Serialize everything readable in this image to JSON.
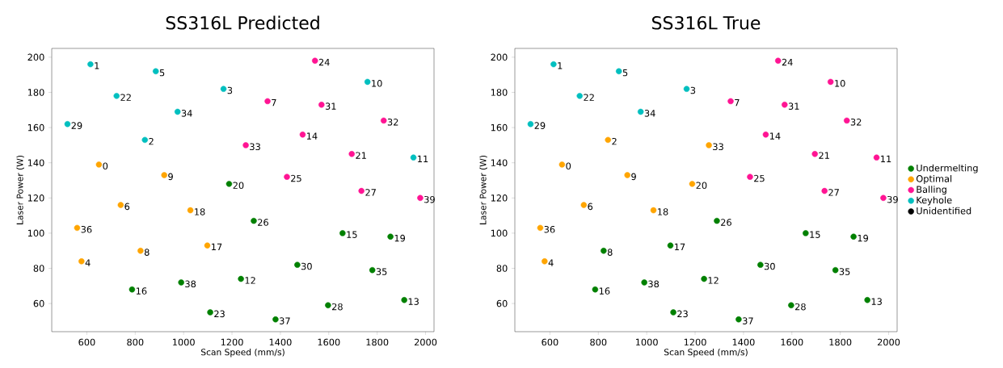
{
  "chart_data": [
    {
      "type": "scatter",
      "title": "SS316L Predicted",
      "xlabel": "Scan Speed (mm/s)",
      "ylabel": "Laser Power (W)",
      "xlim": [
        455,
        2035
      ],
      "ylim": [
        44,
        205
      ],
      "xticks": [
        600,
        800,
        1000,
        1200,
        1400,
        1600,
        1800,
        2000
      ],
      "yticks": [
        60,
        80,
        100,
        120,
        140,
        160,
        180,
        200
      ],
      "legend": false,
      "series": [
        {
          "color": "#008000",
          "x": [
            1188,
            1290,
            1657,
            1855,
            1470,
            1780,
            787,
            990,
            1237,
            1912,
            1597,
            1110,
            1380
          ],
          "values": [
            128,
            107,
            100,
            98,
            82,
            79,
            68,
            72,
            74,
            62,
            59,
            55,
            51
          ]
        },
        {
          "color": "#ffa500",
          "x": [
            650,
            920,
            740,
            1028,
            560,
            822,
            1098,
            578
          ],
          "values": [
            139,
            133,
            116,
            113,
            103,
            90,
            93,
            84
          ]
        },
        {
          "color": "#ff1493",
          "x": [
            1543,
            1347,
            1570,
            1827,
            1492,
            1257,
            1695,
            1427,
            1735,
            1978
          ],
          "values": [
            198,
            175,
            173,
            164,
            156,
            150,
            145,
            132,
            124,
            120
          ]
        },
        {
          "color": "#00bfbf",
          "x": [
            615,
            885,
            1165,
            723,
            975,
            520,
            840,
            1760,
            1950
          ],
          "values": [
            196,
            192,
            182,
            178,
            169,
            162,
            153,
            186,
            143
          ]
        }
      ],
      "annotations": [
        {
          "text": "0",
          "x": 650,
          "y": 139
        },
        {
          "text": "1",
          "x": 615,
          "y": 196
        },
        {
          "text": "2",
          "x": 840,
          "y": 153
        },
        {
          "text": "3",
          "x": 1165,
          "y": 182
        },
        {
          "text": "4",
          "x": 578,
          "y": 84
        },
        {
          "text": "5",
          "x": 885,
          "y": 192
        },
        {
          "text": "6",
          "x": 740,
          "y": 116
        },
        {
          "text": "7",
          "x": 1347,
          "y": 175
        },
        {
          "text": "8",
          "x": 822,
          "y": 90
        },
        {
          "text": "9",
          "x": 920,
          "y": 133
        },
        {
          "text": "10",
          "x": 1760,
          "y": 186
        },
        {
          "text": "11",
          "x": 1950,
          "y": 143
        },
        {
          "text": "12",
          "x": 1237,
          "y": 74
        },
        {
          "text": "13",
          "x": 1912,
          "y": 62
        },
        {
          "text": "14",
          "x": 1492,
          "y": 156
        },
        {
          "text": "15",
          "x": 1657,
          "y": 100
        },
        {
          "text": "16",
          "x": 787,
          "y": 68
        },
        {
          "text": "17",
          "x": 1098,
          "y": 93
        },
        {
          "text": "18",
          "x": 1028,
          "y": 113
        },
        {
          "text": "19",
          "x": 1855,
          "y": 98
        },
        {
          "text": "20",
          "x": 1188,
          "y": 128
        },
        {
          "text": "21",
          "x": 1695,
          "y": 145
        },
        {
          "text": "22",
          "x": 723,
          "y": 178
        },
        {
          "text": "23",
          "x": 1110,
          "y": 55
        },
        {
          "text": "24",
          "x": 1543,
          "y": 198
        },
        {
          "text": "25",
          "x": 1427,
          "y": 132
        },
        {
          "text": "26",
          "x": 1290,
          "y": 107
        },
        {
          "text": "27",
          "x": 1735,
          "y": 124
        },
        {
          "text": "28",
          "x": 1597,
          "y": 59
        },
        {
          "text": "29",
          "x": 520,
          "y": 162
        },
        {
          "text": "30",
          "x": 1470,
          "y": 82
        },
        {
          "text": "31",
          "x": 1570,
          "y": 173
        },
        {
          "text": "32",
          "x": 1827,
          "y": 164
        },
        {
          "text": "33",
          "x": 1257,
          "y": 150
        },
        {
          "text": "34",
          "x": 975,
          "y": 169
        },
        {
          "text": "35",
          "x": 1780,
          "y": 79
        },
        {
          "text": "36",
          "x": 560,
          "y": 103
        },
        {
          "text": "37",
          "x": 1380,
          "y": 51
        },
        {
          "text": "38",
          "x": 990,
          "y": 72
        },
        {
          "text": "39",
          "x": 1978,
          "y": 120
        }
      ]
    },
    {
      "type": "scatter",
      "title": "SS316L True",
      "xlabel": "Scan Speed (mm/s)",
      "ylabel": "Laser Power (W)",
      "xlim": [
        455,
        2035
      ],
      "ylim": [
        44,
        205
      ],
      "xticks": [
        600,
        800,
        1000,
        1200,
        1400,
        1600,
        1800,
        2000
      ],
      "yticks": [
        60,
        80,
        100,
        120,
        140,
        160,
        180,
        200
      ],
      "legend": "right",
      "series": [
        {
          "name": "Undermelting",
          "color": "#008000",
          "x": [
            1290,
            1657,
            1855,
            822,
            1098,
            1470,
            1780,
            787,
            990,
            1237,
            1912,
            1597,
            1110,
            1380
          ],
          "values": [
            107,
            100,
            98,
            90,
            93,
            82,
            79,
            68,
            72,
            74,
            62,
            59,
            55,
            51
          ]
        },
        {
          "name": "Optimal",
          "color": "#ffa500",
          "x": [
            840,
            1257,
            650,
            920,
            1188,
            740,
            1028,
            560,
            578
          ],
          "values": [
            153,
            150,
            139,
            133,
            128,
            116,
            113,
            103,
            84
          ]
        },
        {
          "name": "Balling",
          "color": "#ff1493",
          "x": [
            1543,
            1760,
            1347,
            1570,
            1827,
            1492,
            1695,
            1950,
            1427,
            1735,
            1978
          ],
          "values": [
            198,
            186,
            175,
            173,
            164,
            156,
            145,
            143,
            132,
            124,
            120
          ]
        },
        {
          "name": "Keyhole",
          "color": "#00bfbf",
          "x": [
            615,
            885,
            1165,
            723,
            975,
            520
          ],
          "values": [
            196,
            192,
            182,
            178,
            169,
            162
          ]
        },
        {
          "name": "Unidentified",
          "color": "#000000"
        }
      ],
      "annotations": [
        {
          "text": "0",
          "x": 650,
          "y": 139
        },
        {
          "text": "1",
          "x": 615,
          "y": 196
        },
        {
          "text": "2",
          "x": 840,
          "y": 153
        },
        {
          "text": "3",
          "x": 1165,
          "y": 182
        },
        {
          "text": "4",
          "x": 578,
          "y": 84
        },
        {
          "text": "5",
          "x": 885,
          "y": 192
        },
        {
          "text": "6",
          "x": 740,
          "y": 116
        },
        {
          "text": "7",
          "x": 1347,
          "y": 175
        },
        {
          "text": "8",
          "x": 822,
          "y": 90
        },
        {
          "text": "9",
          "x": 920,
          "y": 133
        },
        {
          "text": "10",
          "x": 1760,
          "y": 186
        },
        {
          "text": "11",
          "x": 1950,
          "y": 143
        },
        {
          "text": "12",
          "x": 1237,
          "y": 74
        },
        {
          "text": "13",
          "x": 1912,
          "y": 62
        },
        {
          "text": "14",
          "x": 1492,
          "y": 156
        },
        {
          "text": "15",
          "x": 1657,
          "y": 100
        },
        {
          "text": "16",
          "x": 787,
          "y": 68
        },
        {
          "text": "17",
          "x": 1098,
          "y": 93
        },
        {
          "text": "18",
          "x": 1028,
          "y": 113
        },
        {
          "text": "19",
          "x": 1855,
          "y": 98
        },
        {
          "text": "20",
          "x": 1188,
          "y": 128
        },
        {
          "text": "21",
          "x": 1695,
          "y": 145
        },
        {
          "text": "22",
          "x": 723,
          "y": 178
        },
        {
          "text": "23",
          "x": 1110,
          "y": 55
        },
        {
          "text": "24",
          "x": 1543,
          "y": 198
        },
        {
          "text": "25",
          "x": 1427,
          "y": 132
        },
        {
          "text": "26",
          "x": 1290,
          "y": 107
        },
        {
          "text": "27",
          "x": 1735,
          "y": 124
        },
        {
          "text": "28",
          "x": 1597,
          "y": 59
        },
        {
          "text": "29",
          "x": 520,
          "y": 162
        },
        {
          "text": "30",
          "x": 1470,
          "y": 82
        },
        {
          "text": "31",
          "x": 1570,
          "y": 173
        },
        {
          "text": "32",
          "x": 1827,
          "y": 164
        },
        {
          "text": "33",
          "x": 1257,
          "y": 150
        },
        {
          "text": "34",
          "x": 975,
          "y": 169
        },
        {
          "text": "35",
          "x": 1780,
          "y": 79
        },
        {
          "text": "36",
          "x": 560,
          "y": 103
        },
        {
          "text": "37",
          "x": 1380,
          "y": 51
        },
        {
          "text": "38",
          "x": 990,
          "y": 72
        },
        {
          "text": "39",
          "x": 1978,
          "y": 120
        }
      ]
    }
  ]
}
